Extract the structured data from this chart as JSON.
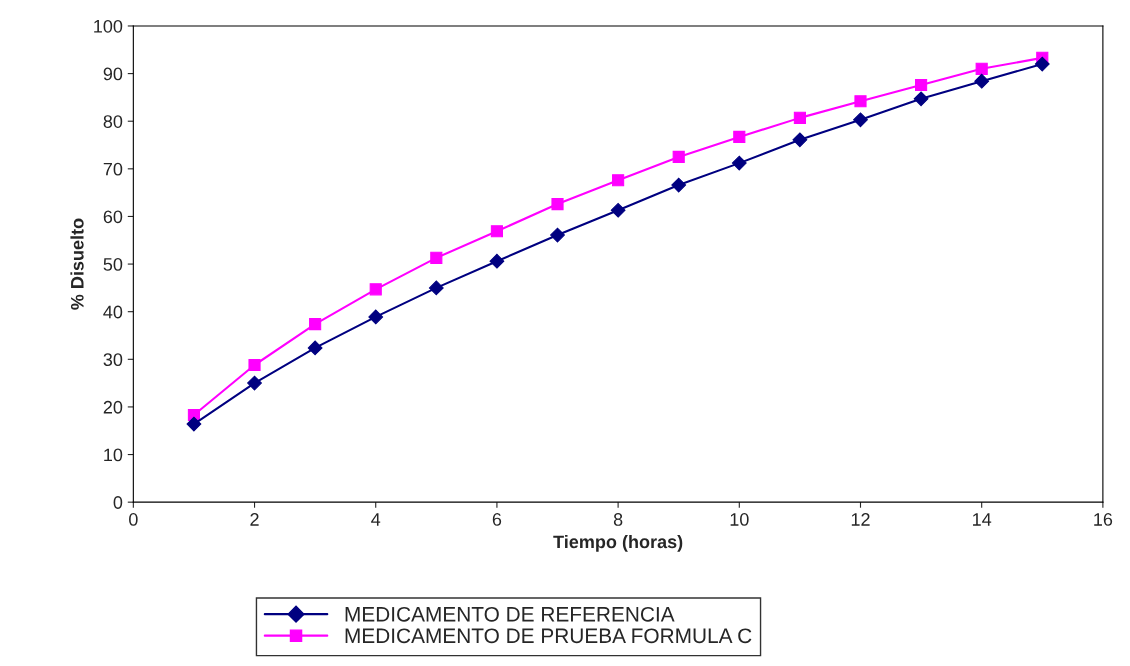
{
  "chart_data": {
    "type": "line",
    "xlabel": "Tiempo (horas)",
    "ylabel": "% Disuelto",
    "x": [
      1,
      2,
      3,
      4,
      5,
      6,
      7,
      8,
      9,
      10,
      11,
      12,
      13,
      14,
      15
    ],
    "series": [
      {
        "name": "MEDICAMENTO DE REFERENCIA",
        "color": "#000080",
        "marker": "diamond",
        "values": [
          16.4,
          25.0,
          32.4,
          38.9,
          45.0,
          50.6,
          56.1,
          61.3,
          66.6,
          71.2,
          76.1,
          80.3,
          84.7,
          88.4,
          92.0
        ]
      },
      {
        "name": "MEDICAMENTO DE PRUEBA FORMULA C",
        "color": "#ff00ff",
        "marker": "square",
        "values": [
          18.3,
          28.8,
          37.4,
          44.7,
          51.3,
          56.9,
          62.6,
          67.6,
          72.5,
          76.7,
          80.7,
          84.2,
          87.6,
          91.0,
          93.3
        ]
      }
    ],
    "xlim": [
      0,
      16
    ],
    "xticks": [
      0,
      2,
      4,
      6,
      8,
      10,
      12,
      14,
      16
    ],
    "ylim": [
      0,
      100
    ],
    "yticks": [
      0,
      10,
      20,
      30,
      40,
      50,
      60,
      70,
      80,
      90,
      100
    ],
    "grid": false,
    "legend": "bottom",
    "line_style": "solid"
  }
}
